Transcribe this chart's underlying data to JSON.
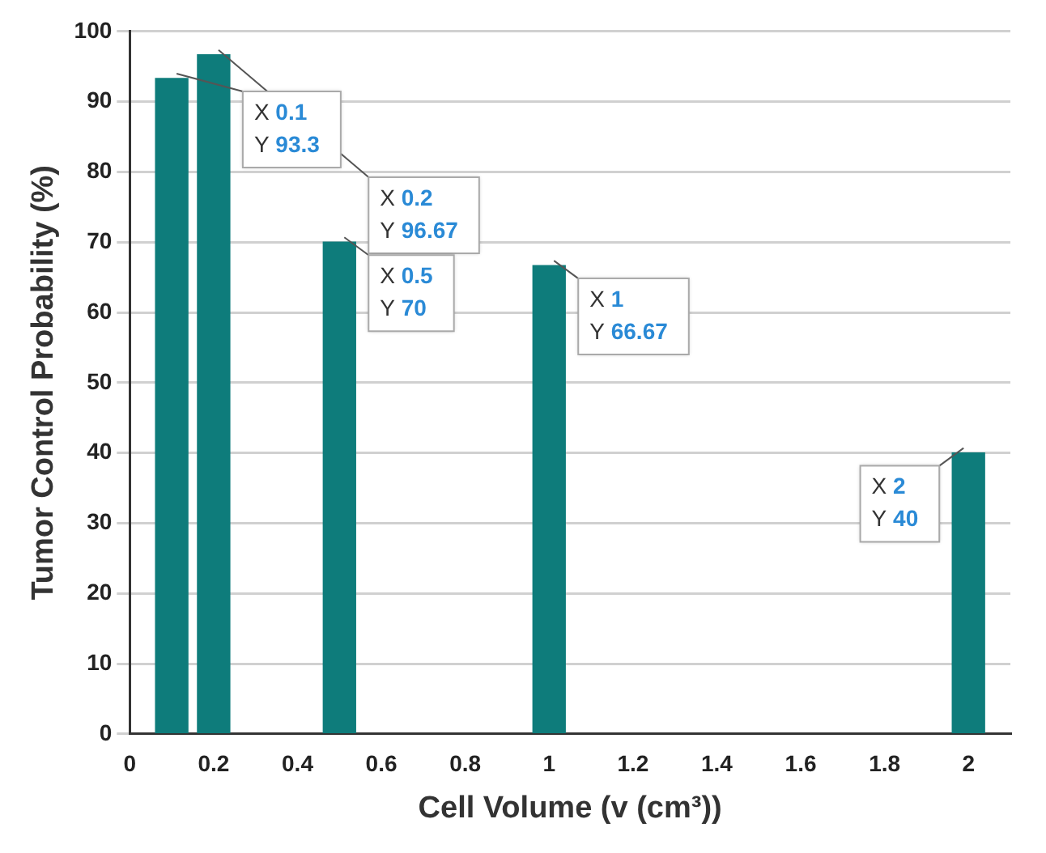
{
  "chart_data": {
    "type": "bar",
    "xlabel": "Cell Volume (v (cm³))",
    "ylabel": "Tumor Control Probability (%)",
    "x": [
      0.1,
      0.2,
      0.5,
      1,
      2
    ],
    "values": [
      93.3,
      96.67,
      70,
      66.67,
      40
    ],
    "color": "#0e7c7b",
    "xlim": [
      0,
      2.1
    ],
    "xticks": [
      0,
      0.2,
      0.4,
      0.6,
      0.8,
      1,
      1.2,
      1.4,
      1.6,
      1.8,
      2
    ],
    "ylim": [
      0,
      100
    ],
    "yticks": [
      0,
      10,
      20,
      30,
      40,
      50,
      60,
      70,
      80,
      90,
      100
    ],
    "grid": "y",
    "annotations": [
      {
        "text": "X 0.1\nY 93.3",
        "x": 0.1,
        "y": 93.3
      },
      {
        "text": "X 0.2\nY 96.67",
        "x": 0.2,
        "y": 96.67
      },
      {
        "text": "X 0.5\nY 70",
        "x": 0.5,
        "y": 70
      },
      {
        "text": "X 1\nY 66.67",
        "x": 1,
        "y": 66.67
      },
      {
        "text": "X 2\nY 40",
        "x": 2,
        "y": 40
      }
    ]
  }
}
